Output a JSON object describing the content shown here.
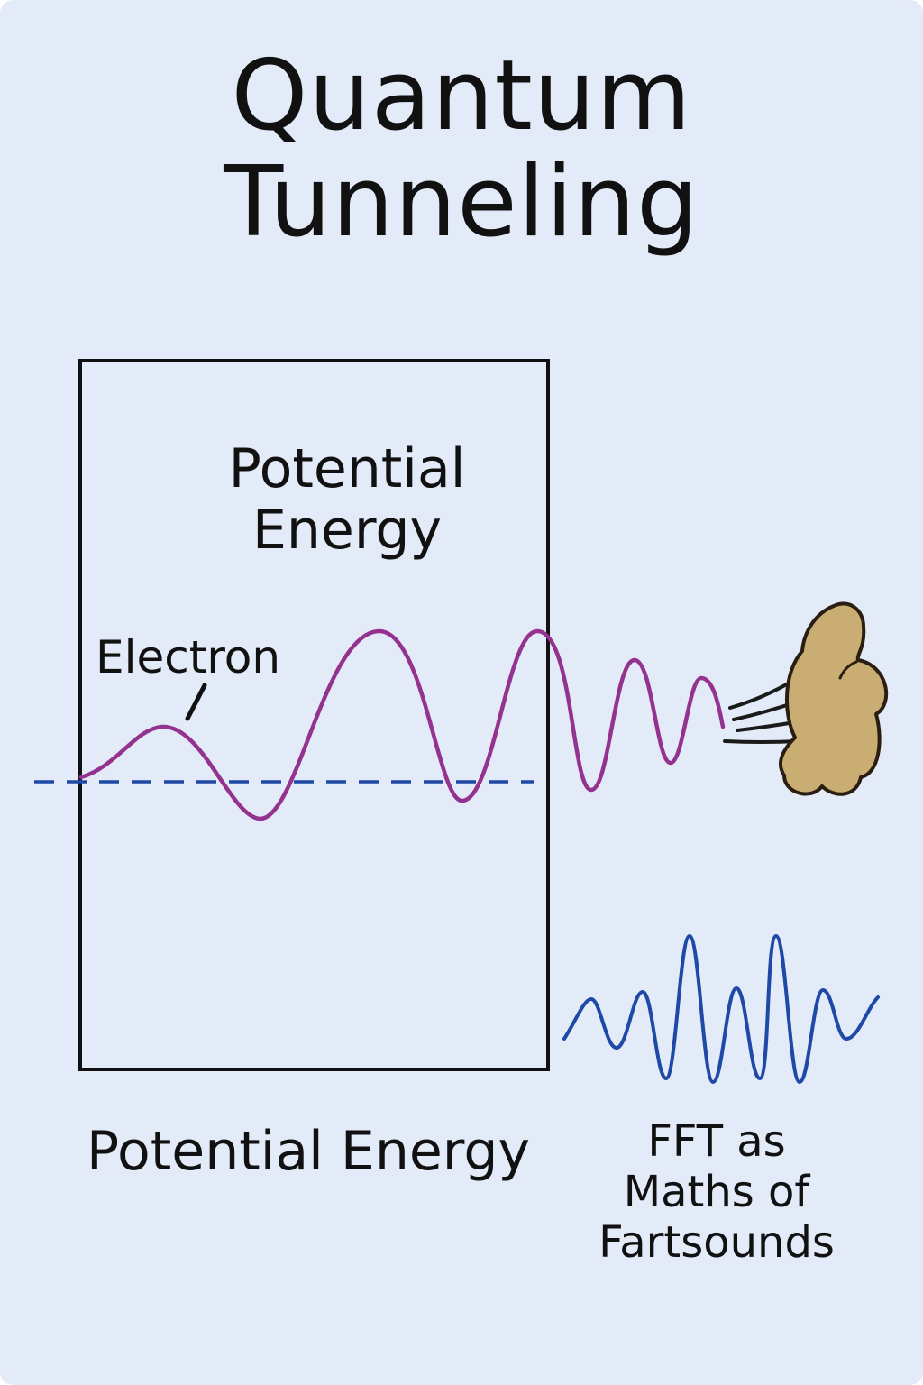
{
  "title": {
    "line1": "Quantum",
    "line2": "Tunneling"
  },
  "barrier": {
    "label_line1": "Potential",
    "label_line2": "Energy"
  },
  "electron": {
    "label": "Electron"
  },
  "bottom": {
    "label": "Potential Energy"
  },
  "fft": {
    "line1": "FFT as",
    "line2": "Maths of",
    "line3": "Fartsounds"
  },
  "colors": {
    "background": "#e3ebf8",
    "wave": "#93338f",
    "baseline": "#1f49a6",
    "fft_wave": "#1f49a6",
    "cloud_fill": "#c9ad72",
    "ink": "#111111"
  }
}
